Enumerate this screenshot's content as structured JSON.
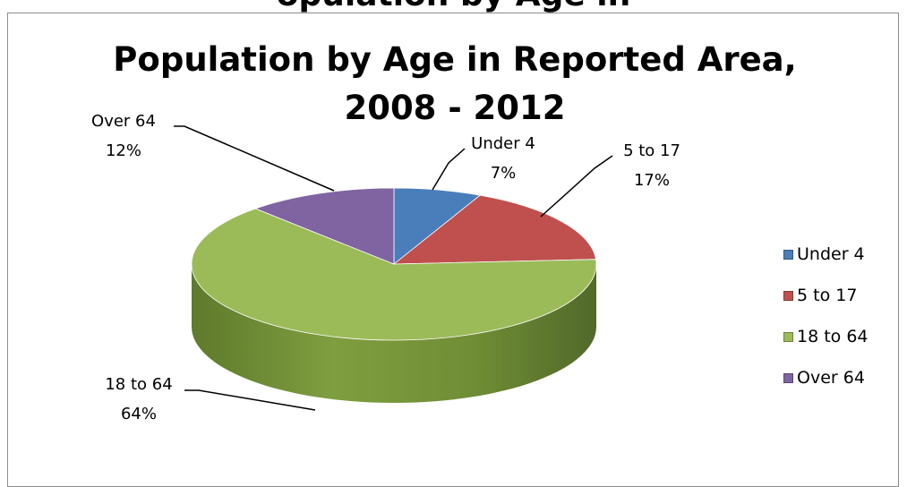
{
  "cut_title": "opulation by Age in",
  "chart_data": {
    "type": "pie",
    "title": "Population by Age in Reported Area,",
    "subtitle": "2008 - 2012",
    "categories": [
      "Under 4",
      "5 to 17",
      "18 to 64",
      "Over 64"
    ],
    "values": [
      7,
      17,
      64,
      12
    ],
    "value_labels": [
      "7%",
      "17%",
      "64%",
      "12%"
    ],
    "colors": [
      "#4a7ebb",
      "#c0504d",
      "#9bbb59",
      "#8064a2"
    ],
    "legend_position": "right",
    "style": "3d"
  }
}
